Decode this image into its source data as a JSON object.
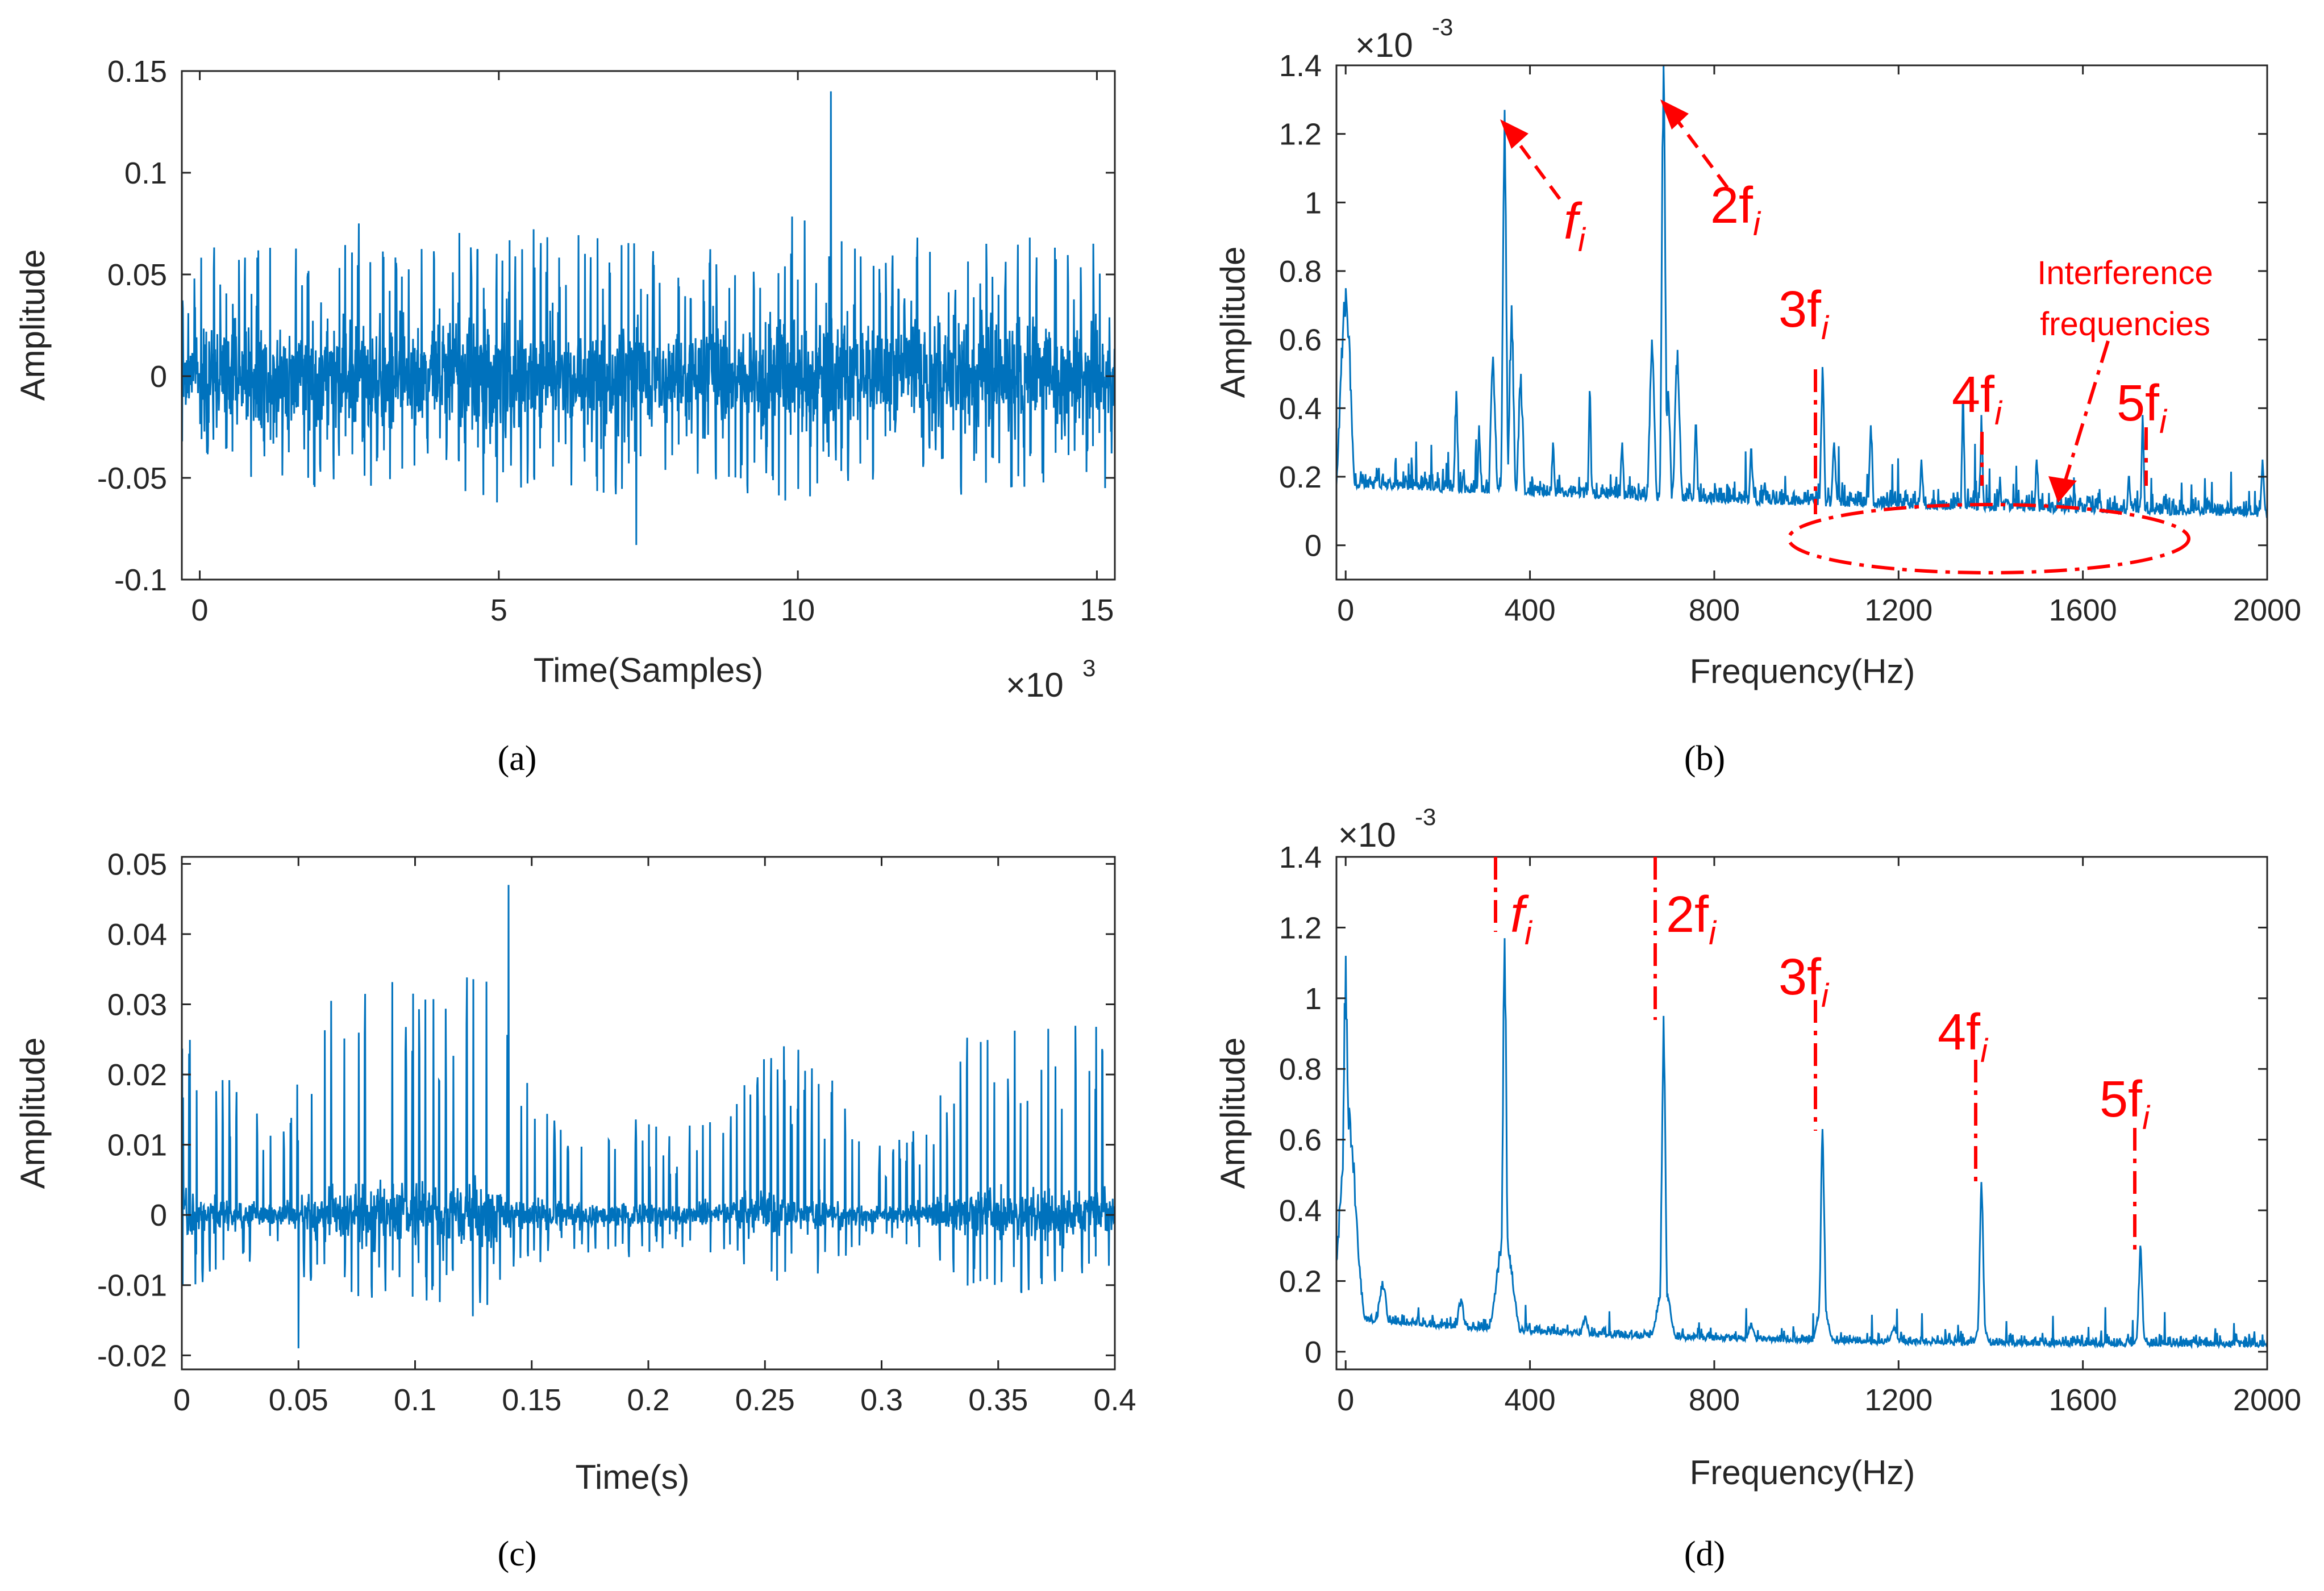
{
  "colors": {
    "signal": "#0072bd",
    "annotation": "#ff0000",
    "axis": "#262626"
  },
  "chart_data": [
    {
      "id": "a",
      "type": "line",
      "caption": "(a)",
      "xlabel": "Time(Samples)",
      "ylabel": "Amplitude",
      "x_multiplier": "×10",
      "x_multiplier_exp": "3",
      "xlim": [
        -0.3,
        15.3
      ],
      "ylim": [
        -0.1,
        0.15
      ],
      "xticks": [
        0,
        5,
        10,
        15
      ],
      "xtick_labels": [
        "0",
        "5",
        "10",
        "15"
      ],
      "yticks": [
        -0.1,
        -0.05,
        0,
        0.05,
        0.1,
        0.15
      ],
      "ytick_labels": [
        "-0.1",
        "-0.05",
        "0",
        "0.05",
        "0.1",
        "0.15"
      ],
      "signal": {
        "kind": "noise",
        "n": 2600,
        "x_start": -0.3,
        "x_end": 15.3,
        "noise": 0.045,
        "spike_every": 0.105,
        "spike_amp": 0.07,
        "bias": 0,
        "neg": 0.8,
        "envelope": [
          0.8,
          1.0,
          0.95,
          1.15,
          0.9,
          1.2,
          1.0,
          1.1,
          0.85,
          1.05,
          1.2,
          0.9,
          1.0,
          1.1,
          0.95,
          1.0
        ],
        "peak": [
          10.55,
          0.14
        ],
        "min": [
          7.3,
          -0.083
        ]
      }
    },
    {
      "id": "b",
      "type": "line",
      "caption": "(b)",
      "xlabel": "Frequency(Hz)",
      "ylabel": "Amplitude",
      "y_multiplier": "×10",
      "y_multiplier_exp": "-3",
      "xlim": [
        -20,
        2000
      ],
      "ylim": [
        -0.1,
        1.4
      ],
      "xticks": [
        0,
        400,
        800,
        1200,
        1600,
        2000
      ],
      "xtick_labels": [
        "0",
        "400",
        "800",
        "1200",
        "1600",
        "2000"
      ],
      "yticks": [
        0,
        0.2,
        0.4,
        0.6,
        0.8,
        1,
        1.2,
        1.4
      ],
      "ytick_labels": [
        "0",
        "0.2",
        "0.4",
        "0.6",
        "0.8",
        "1",
        "1.2",
        "1.4"
      ],
      "signal": {
        "kind": "spectrum",
        "n": 1600,
        "x_start": -20,
        "x_end": 2000,
        "base": 0.13,
        "decay": 1800,
        "floor": 0.04,
        "noise": 0.07,
        "peaks": [
          [
            0,
            0.75,
            12
          ],
          [
            345,
            1.27,
            4
          ],
          [
            320,
            0.55,
            6
          ],
          [
            380,
            0.5,
            6
          ],
          [
            360,
            0.7,
            5
          ],
          [
            690,
            1.45,
            4
          ],
          [
            665,
            0.6,
            6
          ],
          [
            720,
            0.57,
            6
          ],
          [
            700,
            0.45,
            5
          ],
          [
            1035,
            0.52,
            4
          ],
          [
            1060,
            0.3,
            5
          ],
          [
            1340,
            0.42,
            3
          ],
          [
            1380,
            0.38,
            3
          ],
          [
            1420,
            0.2,
            3
          ],
          [
            1730,
            0.38,
            3
          ],
          [
            1700,
            0.2,
            4
          ],
          [
            240,
            0.45,
            4
          ],
          [
            290,
            0.35,
            4
          ],
          [
            450,
            0.3,
            4
          ],
          [
            530,
            0.45,
            3
          ],
          [
            600,
            0.3,
            4
          ],
          [
            760,
            0.35,
            4
          ],
          [
            880,
            0.28,
            4
          ],
          [
            1140,
            0.35,
            4
          ],
          [
            1250,
            0.25,
            4
          ],
          [
            1500,
            0.25,
            4
          ],
          [
            1990,
            0.25,
            4
          ]
        ]
      }
    },
    {
      "id": "c",
      "type": "line",
      "caption": "(c)",
      "xlabel": "Time(s)",
      "ylabel": "Amplitude",
      "xlim": [
        0,
        0.4
      ],
      "ylim": [
        -0.022,
        0.051
      ],
      "xticks": [
        0,
        0.05,
        0.1,
        0.15,
        0.2,
        0.25,
        0.3,
        0.35,
        0.4
      ],
      "xtick_labels": [
        "0",
        "0.05",
        "0.1",
        "0.15",
        "0.2",
        "0.25",
        "0.3",
        "0.35",
        "0.4"
      ],
      "yticks": [
        -0.02,
        -0.01,
        0,
        0.01,
        0.02,
        0.03,
        0.04,
        0.05
      ],
      "ytick_labels": [
        "-0.02",
        "-0.01",
        "0",
        "0.01",
        "0.02",
        "0.03",
        "0.04",
        "0.05"
      ],
      "signal": {
        "kind": "noise",
        "n": 2200,
        "x_start": 0,
        "x_end": 0.4,
        "noise": 0.007,
        "spike_every": 0.0029,
        "spike_amp": 0.032,
        "bias": 0.0,
        "neg": 0.4,
        "envelope": [
          0.9,
          0.6,
          0.4,
          1.0,
          1.1,
          1.0,
          1.2,
          0.6,
          0.4,
          0.5,
          0.35,
          0.5,
          0.8,
          0.7,
          0.3,
          0.4,
          0.8,
          0.9,
          0.9,
          0.8
        ],
        "peak": [
          0.14,
          0.047
        ],
        "min": [
          0.05,
          -0.019
        ]
      }
    },
    {
      "id": "d",
      "type": "line",
      "caption": "(d)",
      "xlabel": "Frequency(Hz)",
      "ylabel": "Amplitude",
      "y_multiplier": "×10",
      "y_multiplier_exp": "-3",
      "xlim": [
        -20,
        2000
      ],
      "ylim": [
        -0.05,
        1.4
      ],
      "xticks": [
        0,
        400,
        800,
        1200,
        1600,
        2000
      ],
      "xtick_labels": [
        "0",
        "400",
        "800",
        "1200",
        "1600",
        "2000"
      ],
      "yticks": [
        0,
        0.2,
        0.4,
        0.6,
        0.8,
        1,
        1.2,
        1.4
      ],
      "ytick_labels": [
        "0",
        "0.2",
        "0.4",
        "0.6",
        "0.8",
        "1",
        "1.2",
        "1.4"
      ],
      "signal": {
        "kind": "spectrum",
        "n": 1600,
        "x_start": -20,
        "x_end": 2000,
        "base": 0.08,
        "decay": 600,
        "floor": 0.01,
        "noise": 0.035,
        "peaks": [
          [
            0,
            1.12,
            5
          ],
          [
            5,
            0.7,
            18
          ],
          [
            345,
            1.17,
            4
          ],
          [
            345,
            0.35,
            18
          ],
          [
            690,
            0.95,
            4
          ],
          [
            690,
            0.2,
            15
          ],
          [
            1035,
            0.63,
            4
          ],
          [
            1035,
            0.15,
            12
          ],
          [
            1380,
            0.48,
            4
          ],
          [
            1380,
            0.1,
            10
          ],
          [
            1725,
            0.3,
            4
          ],
          [
            1725,
            0.06,
            10
          ],
          [
            80,
            0.2,
            10
          ],
          [
            250,
            0.15,
            8
          ],
          [
            520,
            0.1,
            8
          ],
          [
            880,
            0.08,
            8
          ],
          [
            1190,
            0.07,
            8
          ]
        ]
      }
    }
  ],
  "annotations": {
    "b": {
      "labels": [
        "f",
        "2f",
        "3f",
        "4f",
        "5f"
      ],
      "subscript": "i",
      "interference_line1": "Interference",
      "interference_line2": "frequencies"
    },
    "d": {
      "labels": [
        "f",
        "2f",
        "3f",
        "4f",
        "5f"
      ],
      "subscript": "i"
    }
  }
}
